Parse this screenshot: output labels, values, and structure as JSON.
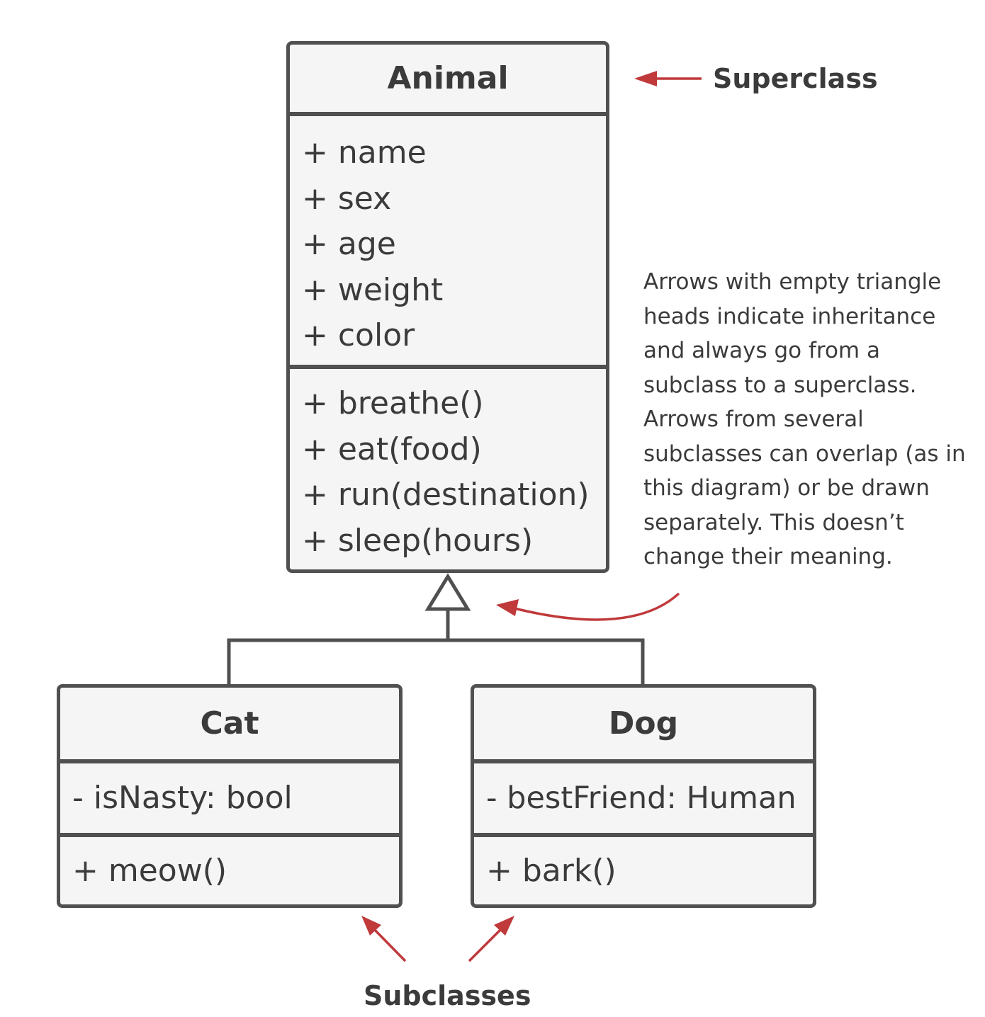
{
  "classes": {
    "animal": {
      "name": "Animal",
      "attributes": [
        "+ name",
        "+ sex",
        "+ age",
        "+ weight",
        "+ color"
      ],
      "methods": [
        "+ breathe()",
        "+ eat(food)",
        "+ run(destination)",
        "+ sleep(hours)"
      ]
    },
    "cat": {
      "name": "Cat",
      "attributes": [
        "- isNasty: bool"
      ],
      "methods": [
        "+ meow()"
      ]
    },
    "dog": {
      "name": "Dog",
      "attributes": [
        "- bestFriend: Human"
      ],
      "methods": [
        "+ bark()"
      ]
    }
  },
  "labels": {
    "superclass": "Superclass",
    "subclasses": "Subclasses"
  },
  "note": {
    "lines": [
      "Arrows with empty triangle",
      "heads indicate inheritance",
      "and always go from a",
      "subclass to a superclass.",
      "Arrows from several",
      "subclasses can overlap (as in",
      "this diagram) or be drawn",
      "separately. This doesn’t",
      "change their meaning."
    ]
  },
  "colors": {
    "border": "#505050",
    "box_fill": "#f5f5f5",
    "text": "#3b3b3b",
    "annotation_arrow": "#c0393b"
  }
}
